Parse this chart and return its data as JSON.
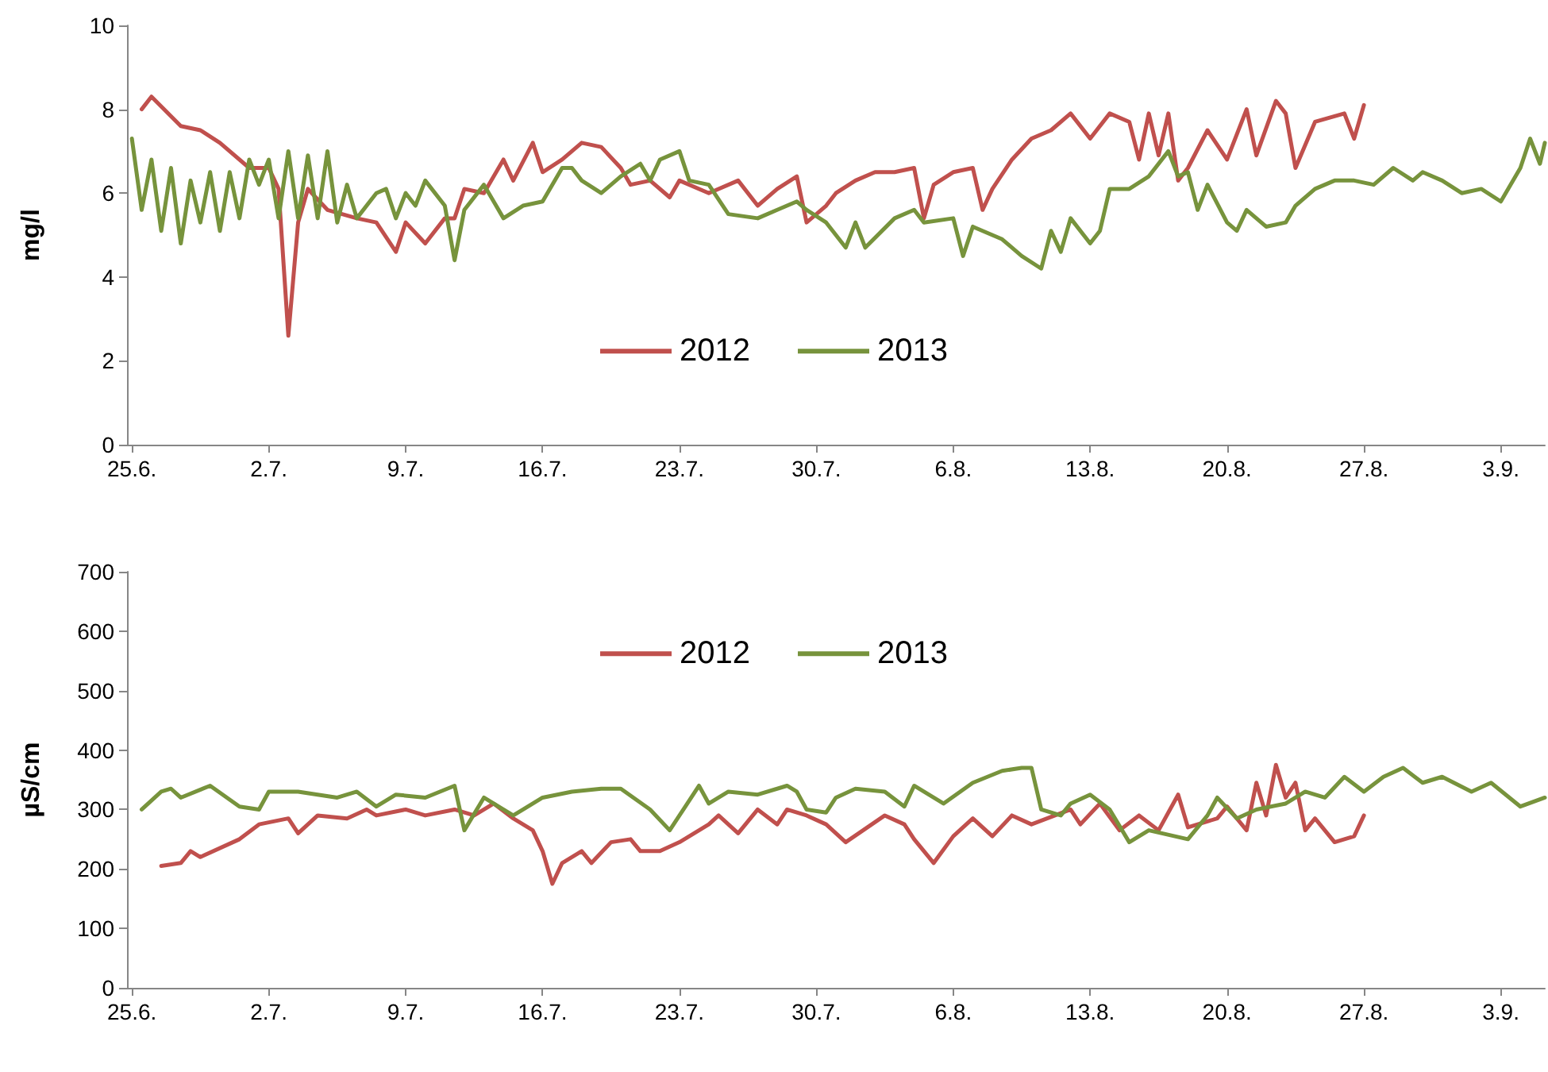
{
  "chart_data": [
    {
      "type": "line",
      "ylabel": "mg/l",
      "xlim": [
        "--06-24T18:00",
        "--09-05T06:00"
      ],
      "ylim": [
        0,
        10
      ],
      "yticks": [
        0,
        2,
        4,
        6,
        8,
        10
      ],
      "xticks": [
        {
          "value": "--06-25",
          "label": "25.6."
        },
        {
          "value": "--07-02",
          "label": "2.7."
        },
        {
          "value": "--07-09",
          "label": "9.7."
        },
        {
          "value": "--07-16",
          "label": "16.7."
        },
        {
          "value": "--07-23",
          "label": "23.7."
        },
        {
          "value": "--07-30",
          "label": "30.7."
        },
        {
          "value": "--08-06",
          "label": "6.8."
        },
        {
          "value": "--08-13",
          "label": "13.8."
        },
        {
          "value": "--08-20",
          "label": "20.8."
        },
        {
          "value": "--08-27",
          "label": "27.8."
        },
        {
          "value": "--09-03",
          "label": "3.9."
        }
      ],
      "grid": false,
      "legend": "bottom",
      "marker": "none",
      "line_style": "solid",
      "series": [
        {
          "name": "2012",
          "color": "#c0504d",
          "x": [
            "--06-25T12:00",
            "--06-26",
            "--06-27T12:00",
            "--06-28T12:00",
            "--06-29T12:00",
            "--07-01",
            "--07-02",
            "--07-02T12:00",
            "--07-03",
            "--07-03T12:00",
            "--07-04",
            "--07-05",
            "--07-06T12:00",
            "--07-07T12:00",
            "--07-08T12:00",
            "--07-09",
            "--07-10",
            "--07-11",
            "--07-11T12:00",
            "--07-12",
            "--07-13",
            "--07-14",
            "--07-14T12:00",
            "--07-15T12:00",
            "--07-16",
            "--07-17",
            "--07-18",
            "--07-19",
            "--07-20",
            "--07-20T12:00",
            "--07-21T12:00",
            "--07-22T12:00",
            "--07-23",
            "--07-24T12:00",
            "--07-26",
            "--07-27",
            "--07-28",
            "--07-29",
            "--07-29T12:00",
            "--07-30T12:00",
            "--07-31",
            "--08-01",
            "--08-02",
            "--08-03",
            "--08-04",
            "--08-04T12:00",
            "--08-05",
            "--08-06",
            "--08-07",
            "--08-07T12:00",
            "--08-08",
            "--08-09",
            "--08-10",
            "--08-11",
            "--08-12",
            "--08-13",
            "--08-14",
            "--08-15",
            "--08-15T12:00",
            "--08-16",
            "--08-16T12:00",
            "--08-17",
            "--08-17T12:00",
            "--08-18",
            "--08-19",
            "--08-20",
            "--08-21",
            "--08-21T12:00",
            "--08-22T12:00",
            "--08-23",
            "--08-23T12:00",
            "--08-24T12:00",
            "--08-26",
            "--08-26T12:00",
            "--08-27"
          ],
          "values": [
            8.0,
            8.3,
            7.6,
            7.5,
            7.2,
            6.6,
            6.6,
            6.1,
            2.6,
            5.3,
            6.1,
            5.6,
            5.4,
            5.3,
            4.6,
            5.3,
            4.8,
            5.4,
            5.4,
            6.1,
            6.0,
            6.8,
            6.3,
            7.2,
            6.5,
            6.8,
            7.2,
            7.1,
            6.6,
            6.2,
            6.3,
            5.9,
            6.3,
            6.0,
            6.3,
            5.7,
            6.1,
            6.4,
            5.3,
            5.7,
            6.0,
            6.3,
            6.5,
            6.5,
            6.6,
            5.4,
            6.2,
            6.5,
            6.6,
            5.6,
            6.1,
            6.8,
            7.3,
            7.5,
            7.9,
            7.3,
            7.9,
            7.7,
            6.8,
            7.9,
            6.9,
            7.9,
            6.3,
            6.6,
            7.5,
            6.8,
            8.0,
            6.9,
            8.2,
            7.9,
            6.6,
            7.7,
            7.9,
            7.3,
            8.1
          ]
        },
        {
          "name": "2013",
          "color": "#77933c",
          "x": [
            "--06-25",
            "--06-25T12:00",
            "--06-26",
            "--06-26T12:00",
            "--06-27",
            "--06-27T12:00",
            "--06-28",
            "--06-28T12:00",
            "--06-29",
            "--06-29T12:00",
            "--06-30",
            "--06-30T12:00",
            "--07-01",
            "--07-01T12:00",
            "--07-02",
            "--07-02T12:00",
            "--07-03",
            "--07-03T12:00",
            "--07-04",
            "--07-04T12:00",
            "--07-05",
            "--07-05T12:00",
            "--07-06",
            "--07-06T12:00",
            "--07-07T12:00",
            "--07-08",
            "--07-08T12:00",
            "--07-09",
            "--07-09T12:00",
            "--07-10",
            "--07-11",
            "--07-11T12:00",
            "--07-12",
            "--07-13",
            "--07-14",
            "--07-15",
            "--07-16",
            "--07-17",
            "--07-17T12:00",
            "--07-18",
            "--07-19",
            "--07-20",
            "--07-21",
            "--07-21T12:00",
            "--07-22",
            "--07-23",
            "--07-23T12:00",
            "--07-24T12:00",
            "--07-25T12:00",
            "--07-27",
            "--07-28",
            "--07-29",
            "--07-29T12:00",
            "--07-30T12:00",
            "--07-31T12:00",
            "--08-01",
            "--08-01T12:00",
            "--08-03",
            "--08-04",
            "--08-04T12:00",
            "--08-06",
            "--08-06T12:00",
            "--08-07",
            "--08-08T12:00",
            "--08-09T12:00",
            "--08-10T12:00",
            "--08-11",
            "--08-11T12:00",
            "--08-12",
            "--08-13",
            "--08-13T12:00",
            "--08-14",
            "--08-15",
            "--08-16",
            "--08-17",
            "--08-17T12:00",
            "--08-18",
            "--08-18T12:00",
            "--08-19",
            "--08-20",
            "--08-20T12:00",
            "--08-21",
            "--08-22",
            "--08-23",
            "--08-23T12:00",
            "--08-24T12:00",
            "--08-25T12:00",
            "--08-26T12:00",
            "--08-27T12:00",
            "--08-28T12:00",
            "--08-29T12:00",
            "--08-30",
            "--08-31",
            "--09-01",
            "--09-02",
            "--09-03",
            "--09-04",
            "--09-04T12:00",
            "--09-05",
            "--09-05T06:00"
          ],
          "values": [
            7.3,
            5.6,
            6.8,
            5.1,
            6.6,
            4.8,
            6.3,
            5.3,
            6.5,
            5.1,
            6.5,
            5.4,
            6.8,
            6.2,
            6.8,
            5.4,
            7.0,
            5.4,
            6.9,
            5.4,
            7.0,
            5.3,
            6.2,
            5.4,
            6.0,
            6.1,
            5.4,
            6.0,
            5.7,
            6.3,
            5.7,
            4.4,
            5.6,
            6.2,
            5.4,
            5.7,
            5.8,
            6.6,
            6.6,
            6.3,
            6.0,
            6.4,
            6.7,
            6.3,
            6.8,
            7.0,
            6.3,
            6.2,
            5.5,
            5.4,
            5.6,
            5.8,
            5.6,
            5.3,
            4.7,
            5.3,
            4.7,
            5.4,
            5.6,
            5.3,
            5.4,
            4.5,
            5.2,
            4.9,
            4.5,
            4.2,
            5.1,
            4.6,
            5.4,
            4.8,
            5.1,
            6.1,
            6.1,
            6.4,
            7.0,
            6.4,
            6.5,
            5.6,
            6.2,
            5.3,
            5.1,
            5.6,
            5.2,
            5.3,
            5.7,
            6.1,
            6.3,
            6.3,
            6.2,
            6.6,
            6.3,
            6.5,
            6.3,
            6.0,
            6.1,
            5.8,
            6.6,
            7.3,
            6.7,
            7.2
          ]
        }
      ]
    },
    {
      "type": "line",
      "ylabel": "µS/cm",
      "xlim": [
        "--06-24T18:00",
        "--09-05T06:00"
      ],
      "ylim": [
        0,
        700
      ],
      "yticks": [
        0,
        100,
        200,
        300,
        400,
        500,
        600,
        700
      ],
      "xticks": [
        {
          "value": "--06-25",
          "label": "25.6."
        },
        {
          "value": "--07-02",
          "label": "2.7."
        },
        {
          "value": "--07-09",
          "label": "9.7."
        },
        {
          "value": "--07-16",
          "label": "16.7."
        },
        {
          "value": "--07-23",
          "label": "23.7."
        },
        {
          "value": "--07-30",
          "label": "30.7."
        },
        {
          "value": "--08-06",
          "label": "6.8."
        },
        {
          "value": "--08-13",
          "label": "13.8."
        },
        {
          "value": "--08-20",
          "label": "20.8."
        },
        {
          "value": "--08-27",
          "label": "27.8."
        },
        {
          "value": "--09-03",
          "label": "3.9."
        }
      ],
      "grid": false,
      "legend": "top",
      "marker": "none",
      "line_style": "solid",
      "series": [
        {
          "name": "2012",
          "color": "#c0504d",
          "x": [
            "--06-26T12:00",
            "--06-27T12:00",
            "--06-28",
            "--06-28T12:00",
            "--06-30T12:00",
            "--07-01T12:00",
            "--07-03",
            "--07-03T12:00",
            "--07-04T12:00",
            "--07-06",
            "--07-07",
            "--07-07T12:00",
            "--07-09",
            "--07-10",
            "--07-11T12:00",
            "--07-12T12:00",
            "--07-13T12:00",
            "--07-14T12:00",
            "--07-15T12:00",
            "--07-16",
            "--07-16T12:00",
            "--07-17",
            "--07-18",
            "--07-18T12:00",
            "--07-19T12:00",
            "--07-20T12:00",
            "--07-21",
            "--07-22",
            "--07-23",
            "--07-24T12:00",
            "--07-25",
            "--07-26",
            "--07-27",
            "--07-28",
            "--07-28T12:00",
            "--07-29T12:00",
            "--07-30T12:00",
            "--07-31T12:00",
            "--08-02T12:00",
            "--08-03T12:00",
            "--08-04",
            "--08-05",
            "--08-06",
            "--08-07",
            "--08-08",
            "--08-09",
            "--08-10",
            "--08-12",
            "--08-12T12:00",
            "--08-13T12:00",
            "--08-14T12:00",
            "--08-15T12:00",
            "--08-16T12:00",
            "--08-17T12:00",
            "--08-18",
            "--08-19T12:00",
            "--08-20",
            "--08-21",
            "--08-21T12:00",
            "--08-22",
            "--08-22T12:00",
            "--08-23",
            "--08-23T12:00",
            "--08-24",
            "--08-24T12:00",
            "--08-25T12:00",
            "--08-26T12:00",
            "--08-27"
          ],
          "values": [
            205,
            210,
            230,
            220,
            250,
            275,
            285,
            260,
            290,
            285,
            300,
            290,
            300,
            290,
            300,
            290,
            310,
            285,
            265,
            230,
            175,
            210,
            230,
            210,
            245,
            250,
            230,
            230,
            245,
            275,
            290,
            260,
            300,
            275,
            300,
            290,
            275,
            245,
            290,
            275,
            250,
            210,
            255,
            285,
            255,
            290,
            275,
            300,
            275,
            310,
            265,
            290,
            265,
            325,
            270,
            285,
            305,
            265,
            345,
            290,
            375,
            320,
            345,
            265,
            285,
            245,
            255,
            290
          ]
        },
        {
          "name": "2013",
          "color": "#77933c",
          "x": [
            "--06-25T12:00",
            "--06-26T12:00",
            "--06-27",
            "--06-27T12:00",
            "--06-29",
            "--06-30T12:00",
            "--07-01T12:00",
            "--07-02",
            "--07-03T12:00",
            "--07-05T12:00",
            "--07-06T12:00",
            "--07-07T12:00",
            "--07-08T12:00",
            "--07-10",
            "--07-11T12:00",
            "--07-12",
            "--07-13",
            "--07-14T12:00",
            "--07-16",
            "--07-17T12:00",
            "--07-19",
            "--07-20",
            "--07-21T12:00",
            "--07-22T12:00",
            "--07-23",
            "--07-24",
            "--07-24T12:00",
            "--07-25T12:00",
            "--07-27",
            "--07-28T12:00",
            "--07-29",
            "--07-29T12:00",
            "--07-30T12:00",
            "--07-31",
            "--08-01",
            "--08-02T12:00",
            "--08-03T12:00",
            "--08-04",
            "--08-05T12:00",
            "--08-07",
            "--08-08T12:00",
            "--08-09T12:00",
            "--08-10",
            "--08-10T12:00",
            "--08-11T12:00",
            "--08-12",
            "--08-13",
            "--08-14",
            "--08-15",
            "--08-16",
            "--08-18",
            "--08-19",
            "--08-19T12:00",
            "--08-20T12:00",
            "--08-21T12:00",
            "--08-23",
            "--08-24",
            "--08-25",
            "--08-26",
            "--08-27",
            "--08-28",
            "--08-29",
            "--08-30",
            "--08-31",
            "--09-01T12:00",
            "--09-02T12:00",
            "--09-04",
            "--09-05T06:00"
          ],
          "values": [
            300,
            330,
            335,
            320,
            340,
            305,
            300,
            330,
            330,
            320,
            330,
            305,
            325,
            320,
            340,
            265,
            320,
            290,
            320,
            330,
            335,
            335,
            300,
            265,
            290,
            340,
            310,
            330,
            325,
            340,
            330,
            300,
            295,
            320,
            335,
            330,
            305,
            340,
            310,
            345,
            365,
            370,
            370,
            300,
            290,
            310,
            325,
            300,
            245,
            265,
            250,
            290,
            320,
            285,
            300,
            310,
            330,
            320,
            355,
            330,
            355,
            370,
            345,
            355,
            330,
            345,
            305,
            320
          ]
        }
      ]
    }
  ]
}
